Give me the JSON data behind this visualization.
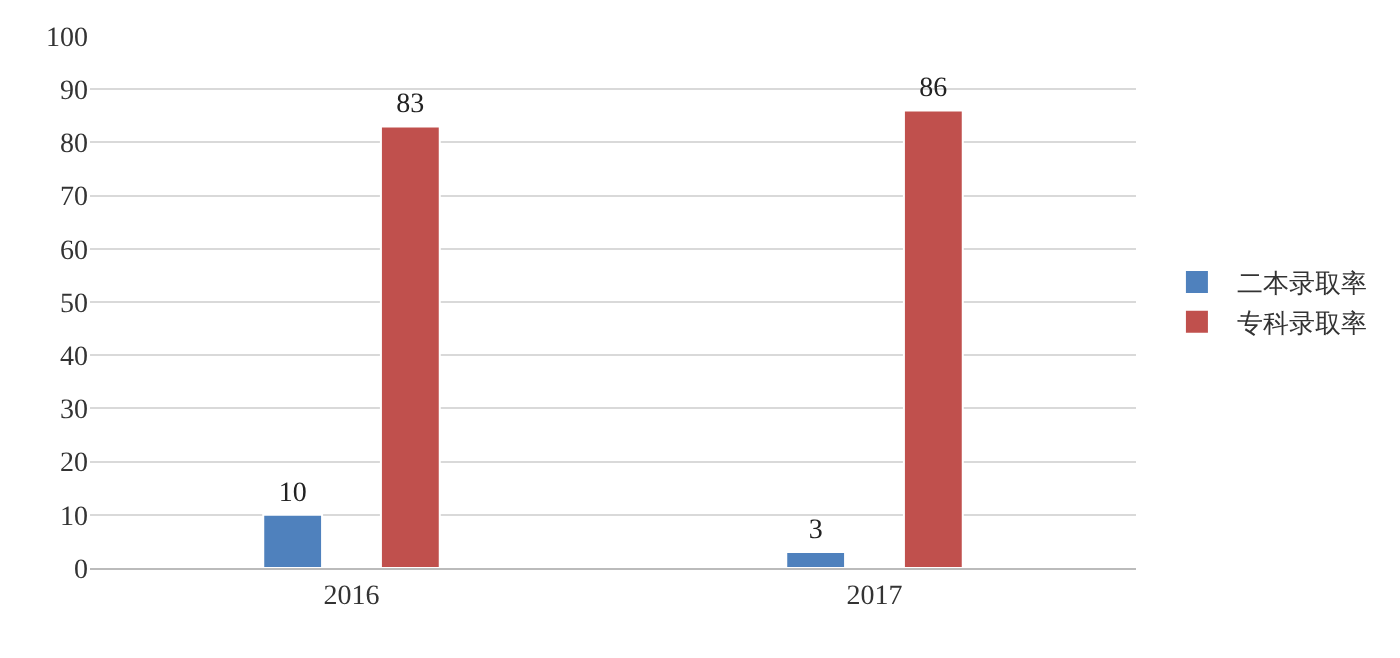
{
  "chart_data": {
    "type": "bar",
    "categories": [
      "2016",
      "2017"
    ],
    "series": [
      {
        "name": "二本录取率",
        "color": "#4f81bd",
        "values": [
          10,
          3
        ]
      },
      {
        "name": "专科录取率",
        "color": "#c0504d",
        "values": [
          83,
          86
        ]
      }
    ],
    "ylim": [
      0,
      100
    ],
    "yticks": [
      0,
      10,
      20,
      30,
      40,
      50,
      60,
      70,
      80,
      90,
      100
    ],
    "grid": "y",
    "legend": "right",
    "data_labels": true
  }
}
